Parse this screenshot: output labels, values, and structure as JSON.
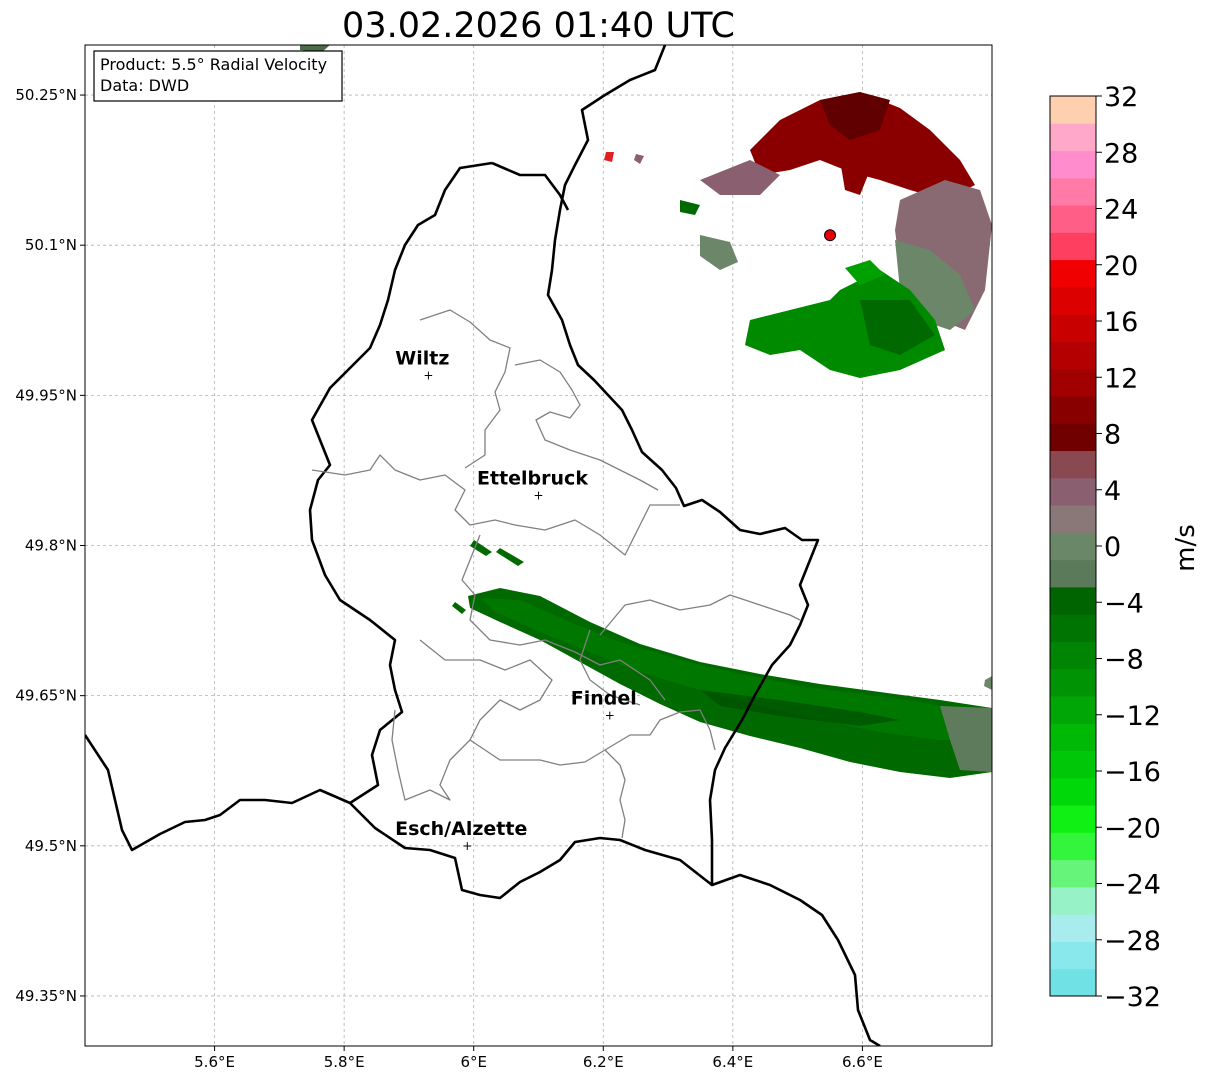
{
  "title": "03.02.2026 01:40 UTC",
  "info_box": {
    "product": "Product: 5.5° Radial Velocity",
    "data": "Data: DWD"
  },
  "map": {
    "lon_range": [
      5.4,
      6.8
    ],
    "lat_range": [
      49.3,
      50.3
    ],
    "lon_ticks": [
      {
        "value": 5.6,
        "label": "5.6°E"
      },
      {
        "value": 5.8,
        "label": "5.8°E"
      },
      {
        "value": 6.0,
        "label": "6°E"
      },
      {
        "value": 6.2,
        "label": "6.2°E"
      },
      {
        "value": 6.4,
        "label": "6.4°E"
      },
      {
        "value": 6.6,
        "label": "6.6°E"
      }
    ],
    "lat_ticks": [
      {
        "value": 49.35,
        "label": "49.35°N"
      },
      {
        "value": 49.5,
        "label": "49.5°N"
      },
      {
        "value": 49.65,
        "label": "49.65°N"
      },
      {
        "value": 49.8,
        "label": "49.8°N"
      },
      {
        "value": 49.95,
        "label": "49.95°N"
      },
      {
        "value": 50.1,
        "label": "50.1°N"
      },
      {
        "value": 50.25,
        "label": "50.25°N"
      }
    ],
    "grid": true,
    "cities": [
      {
        "name": "Wiltz",
        "lon": 5.93,
        "lat": 49.97
      },
      {
        "name": "Ettelbruck",
        "lon": 6.1,
        "lat": 49.85
      },
      {
        "name": "Findel",
        "lon": 6.21,
        "lat": 49.63
      },
      {
        "name": "Esch/Alzette",
        "lon": 5.99,
        "lat": 49.5
      }
    ],
    "radar_site": {
      "lon": 6.55,
      "lat": 50.11,
      "color": "#e8000b"
    }
  },
  "colorbar": {
    "label": "m/s",
    "min": -32,
    "max": 32,
    "ticks": [
      {
        "value": -32,
        "label": "−32"
      },
      {
        "value": -28,
        "label": "−28"
      },
      {
        "value": -24,
        "label": "−24"
      },
      {
        "value": -20,
        "label": "−20"
      },
      {
        "value": -16,
        "label": "−16"
      },
      {
        "value": -12,
        "label": "−12"
      },
      {
        "value": -8,
        "label": "−8"
      },
      {
        "value": -4,
        "label": "−4"
      },
      {
        "value": 0,
        "label": "0"
      },
      {
        "value": 4,
        "label": "4"
      },
      {
        "value": 8,
        "label": "8"
      },
      {
        "value": 12,
        "label": "12"
      },
      {
        "value": 16,
        "label": "16"
      },
      {
        "value": 20,
        "label": "20"
      },
      {
        "value": 24,
        "label": "24"
      },
      {
        "value": 28,
        "label": "28"
      },
      {
        "value": 32,
        "label": "32"
      }
    ],
    "colors": [
      "#70e2e6",
      "#88e8ec",
      "#a8ecee",
      "#98f2c8",
      "#66f57a",
      "#33f53c",
      "#10f015",
      "#00d80a",
      "#00c808",
      "#00b806",
      "#00a605",
      "#009404",
      "#008403",
      "#007402",
      "#006400",
      "#5a7a5a",
      "#6a8868",
      "#8a7878",
      "#8a6070",
      "#8a4850",
      "#700000",
      "#880000",
      "#a00000",
      "#b40000",
      "#c80000",
      "#dc0000",
      "#f00000",
      "#ff3f5f",
      "#ff5f86",
      "#ff7aa6",
      "#ff8ccc",
      "#ffa8c8",
      "#ffd0b0"
    ]
  }
}
